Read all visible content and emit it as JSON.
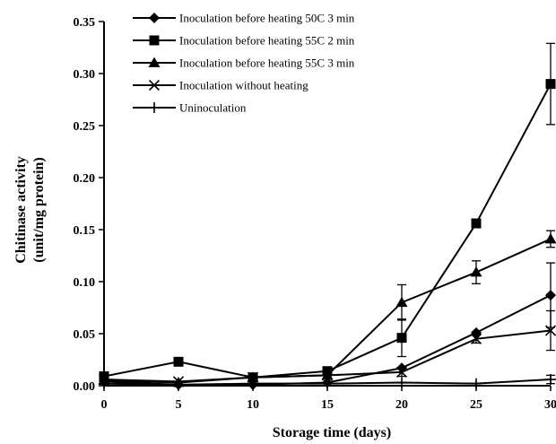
{
  "chart_data": {
    "type": "line",
    "title": "",
    "xlabel": "Storage time (days)",
    "ylabel_line1": "Chitinase activity",
    "ylabel_line2": "(unit/mg protein)",
    "x": [
      0,
      5,
      10,
      15,
      20,
      25,
      30
    ],
    "xlim": [
      0,
      30
    ],
    "ylim": [
      0,
      0.35
    ],
    "xticks": [
      "0",
      "5",
      "10",
      "15",
      "20",
      "25",
      "30"
    ],
    "yticks": [
      "0.00",
      "0.05",
      "0.10",
      "0.15",
      "0.20",
      "0.25",
      "0.30",
      "0.35"
    ],
    "grid": false,
    "legend_position": "top-left",
    "series": [
      {
        "name": "Inoculation before heating 50C 3 min",
        "marker": "diamond",
        "values": [
          0.004,
          0.001,
          0.001,
          0.003,
          0.017,
          0.051,
          0.087
        ],
        "errors": [
          0,
          0,
          0,
          0,
          0,
          0,
          0.031
        ]
      },
      {
        "name": "Inoculation before heating 55C 2 min",
        "marker": "square",
        "values": [
          0.009,
          0.023,
          0.008,
          0.014,
          0.046,
          0.156,
          0.29
        ],
        "errors": [
          0,
          0,
          0,
          0,
          0.018,
          0.004,
          0.039
        ]
      },
      {
        "name": "Inoculation before heating 55C 3 min",
        "marker": "triangle",
        "values": [
          0.005,
          0.003,
          0.008,
          0.01,
          0.08,
          0.109,
          0.141
        ],
        "errors": [
          0,
          0,
          0,
          0,
          0.017,
          0.011,
          0.008
        ]
      },
      {
        "name": "Inoculation without heating",
        "marker": "x",
        "values": [
          0.006,
          0.004,
          0.008,
          0.01,
          0.013,
          0.045,
          0.053
        ],
        "errors": [
          0,
          0,
          0,
          0,
          0.004,
          0.004,
          0.019
        ]
      },
      {
        "name": "Uninoculation",
        "marker": "plus",
        "values": [
          0.002,
          0.001,
          0.002,
          0.002,
          0.003,
          0.002,
          0.006
        ],
        "errors": [
          0,
          0,
          0,
          0,
          0,
          0,
          0.004
        ]
      }
    ]
  }
}
